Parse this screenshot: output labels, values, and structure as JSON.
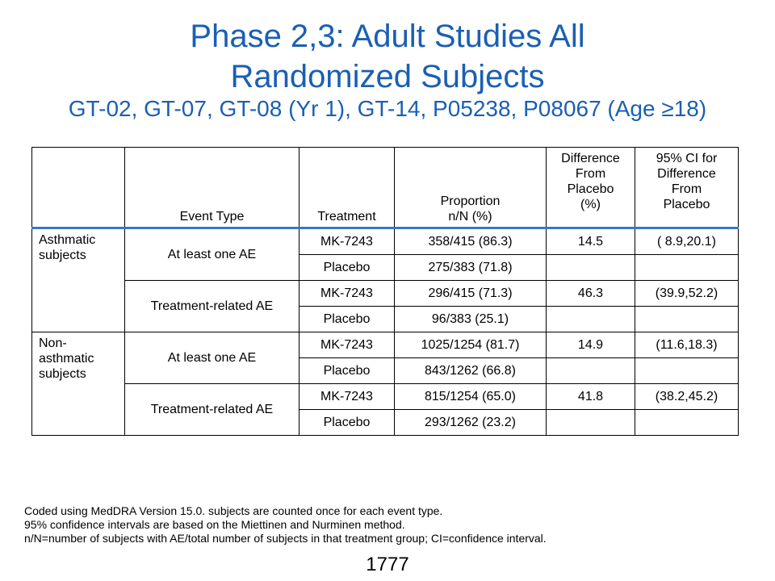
{
  "title": {
    "line1": "Phase 2,3: Adult Studies All",
    "line2": "Randomized Subjects",
    "subtitle": "GT-02, GT-07, GT-08 (Yr 1), GT-14, P05238, P08067 (Age ≥18)"
  },
  "table": {
    "headers": {
      "event_type": "Event Type",
      "treatment": "Treatment",
      "proportion_line1": "Proportion",
      "proportion_line2": "n/N  (%)",
      "difference_line1": "Difference",
      "difference_line2": "From",
      "difference_line3": "Placebo",
      "difference_line4": "(%)",
      "ci_line1": "95% CI for",
      "ci_line2": "Difference",
      "ci_line3": "From",
      "ci_line4": "Placebo"
    },
    "groups": [
      {
        "name_line1": "Asthmatic",
        "name_line2": "subjects",
        "events": [
          {
            "event_type": "At least one AE",
            "rows": [
              {
                "treatment": "MK-7243",
                "proportion": "358/415 (86.3)",
                "difference": "14.5",
                "ci": "( 8.9,20.1)"
              },
              {
                "treatment": "Placebo",
                "proportion": "275/383 (71.8)",
                "difference": "",
                "ci": ""
              }
            ]
          },
          {
            "event_type": "Treatment-related  AE",
            "rows": [
              {
                "treatment": "MK-7243",
                "proportion": "296/415 (71.3)",
                "difference": "46.3",
                "ci": "(39.9,52.2)"
              },
              {
                "treatment": "Placebo",
                "proportion": "96/383 (25.1)",
                "difference": "",
                "ci": ""
              }
            ]
          }
        ]
      },
      {
        "name_line1": "Non-",
        "name_line2": "asthmatic",
        "name_line3": "subjects",
        "events": [
          {
            "event_type": "At least one AE",
            "rows": [
              {
                "treatment": "MK-7243",
                "proportion": "1025/1254 (81.7)",
                "difference": "14.9",
                "ci": "(11.6,18.3)"
              },
              {
                "treatment": "Placebo",
                "proportion": "843/1262 (66.8)",
                "difference": "",
                "ci": ""
              }
            ]
          },
          {
            "event_type": "Treatment-related  AE",
            "rows": [
              {
                "treatment": "MK-7243",
                "proportion": "815/1254 (65.0)",
                "difference": "41.8",
                "ci": "(38.2,45.2)"
              },
              {
                "treatment": "Placebo",
                "proportion": "293/1262 (23.2)",
                "difference": "",
                "ci": ""
              }
            ]
          }
        ]
      }
    ]
  },
  "footnotes": [
    "Coded using MedDRA Version 15.0. subjects are counted once for each event type.",
    "95% confidence intervals are based on the Miettinen and Nurminen method.",
    "n/N=number of subjects with AE/total number of subjects in that treatment group; CI=confidence interval."
  ],
  "page_number": "1777",
  "colors": {
    "title": "#1a5fb4",
    "header_rule": "#3a76c4"
  }
}
